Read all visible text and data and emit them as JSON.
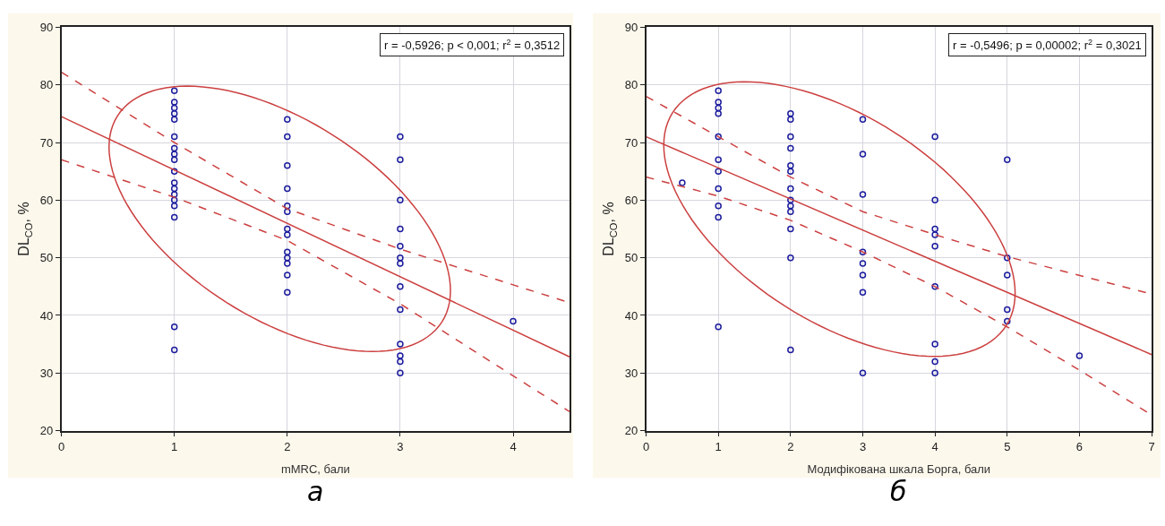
{
  "chart_data": [
    {
      "type": "scatter",
      "xlabel": "mMRC, бали",
      "ylabel": "DL$_{CO}$, %",
      "xlim": [
        0,
        4.5
      ],
      "xticks": [
        0,
        1,
        2,
        3,
        4
      ],
      "ylim": [
        20,
        90
      ],
      "yticks": [
        20,
        30,
        40,
        50,
        60,
        70,
        80,
        90
      ],
      "grid": true,
      "annotations": [
        "r = -0,5926; p < 0,001; r$^{2}$ = 0,3512",
        "а"
      ],
      "series": [
        {
          "type": "scatter",
          "marker": "circle",
          "color": "#1c1c9e",
          "x": [
            1,
            1,
            1,
            1,
            1,
            1,
            1,
            1,
            1,
            1,
            1,
            1,
            1,
            1,
            1,
            1,
            1,
            1,
            2,
            2,
            2,
            2,
            2,
            2,
            2,
            2,
            2,
            2,
            2,
            2,
            2,
            3,
            3,
            3,
            3,
            3,
            3,
            3,
            3,
            3,
            3,
            3,
            3,
            3,
            4
          ],
          "values": [
            79,
            77,
            76,
            75,
            74,
            71,
            69,
            68,
            67,
            65,
            63,
            62,
            61,
            60,
            59,
            57,
            38,
            34,
            74,
            71,
            66,
            62,
            59,
            58,
            55,
            54,
            51,
            50,
            49,
            47,
            44,
            71,
            67,
            60,
            55,
            52,
            50,
            49,
            45,
            41,
            35,
            33,
            32,
            30,
            39
          ]
        },
        {
          "type": "line",
          "marker": "none",
          "line_style": "solid",
          "color": "#cc4040",
          "x": [
            0,
            4.5
          ],
          "values": [
            74.5,
            32.8
          ]
        },
        {
          "type": "line",
          "marker": "none",
          "line_style": "dashed",
          "color": "#cc4040",
          "x": [
            0,
            1,
            2,
            3,
            4,
            4.5
          ],
          "values": [
            82.2,
            70,
            58.5,
            51.5,
            45.3,
            42.2
          ]
        },
        {
          "type": "line",
          "marker": "none",
          "line_style": "dashed",
          "color": "#cc4040",
          "x": [
            0,
            1,
            2,
            3,
            4,
            4.5
          ],
          "values": [
            67,
            60.5,
            53,
            42,
            29.5,
            23.3
          ]
        }
      ]
    },
    {
      "type": "scatter",
      "xlabel": "Модифікована шкала Борга, бали",
      "ylabel": "DL$_{CO}$, %",
      "xlim": [
        0,
        7
      ],
      "xticks": [
        0,
        1,
        2,
        3,
        4,
        5,
        6,
        7
      ],
      "ylim": [
        20,
        90
      ],
      "yticks": [
        20,
        30,
        40,
        50,
        60,
        70,
        80,
        90
      ],
      "grid": true,
      "annotations": [
        "r = -0,5496; p = 0,00002; r$^{2}$ = 0,3021",
        "б"
      ],
      "series": [
        {
          "type": "scatter",
          "marker": "circle",
          "color": "#1c1c9e",
          "x": [
            0.5,
            1,
            1,
            1,
            1,
            1,
            1,
            1,
            1,
            1,
            1,
            1,
            2,
            2,
            2,
            2,
            2,
            2,
            2,
            2,
            2,
            2,
            2,
            2,
            2,
            3,
            3,
            3,
            3,
            3,
            3,
            3,
            3,
            4,
            4,
            4,
            4,
            4,
            4,
            4,
            4,
            4,
            5,
            5,
            5,
            5,
            5,
            6
          ],
          "values": [
            63,
            79,
            77,
            76,
            75,
            71,
            67,
            65,
            62,
            59,
            57,
            38,
            75,
            74,
            71,
            69,
            66,
            65,
            62,
            60,
            59,
            58,
            55,
            50,
            34,
            74,
            68,
            61,
            51,
            49,
            47,
            44,
            30,
            71,
            60,
            55,
            54,
            52,
            45,
            35,
            32,
            30,
            67,
            50,
            47,
            41,
            39,
            33
          ]
        },
        {
          "type": "line",
          "marker": "none",
          "line_style": "solid",
          "color": "#cc4040",
          "x": [
            0,
            7
          ],
          "values": [
            71,
            33.2
          ]
        },
        {
          "type": "line",
          "marker": "none",
          "line_style": "dashed",
          "color": "#cc4040",
          "x": [
            0,
            1,
            2,
            3,
            4,
            5,
            7
          ],
          "values": [
            78,
            71,
            64,
            58,
            54,
            50.2,
            43.7
          ]
        },
        {
          "type": "line",
          "marker": "none",
          "line_style": "dashed",
          "color": "#cc4040",
          "x": [
            0,
            1,
            2,
            3,
            4,
            5,
            6,
            7
          ],
          "values": [
            64,
            60.7,
            56.5,
            51,
            45,
            38,
            30.5,
            22.7
          ]
        }
      ]
    }
  ]
}
